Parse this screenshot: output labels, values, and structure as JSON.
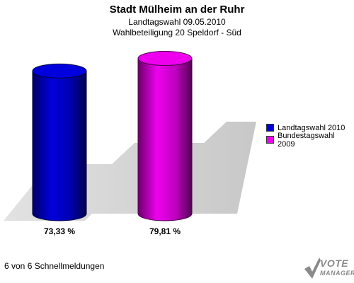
{
  "chart": {
    "title": "Stadt Mülheim an der Ruhr",
    "subtitle1": "Landtagswahl 09.05.2010",
    "subtitle2": "Wahlbeteiligung 20 Speldorf - Süd",
    "footer": "6 von 6 Schnellmeldungen",
    "logo_line1": "VOTE",
    "logo_line2": "MANAGER"
  },
  "legend": {
    "items": [
      {
        "label": "Landtagswahl 2010",
        "color": "#0000dd"
      },
      {
        "label": "Bundestagswahl 2009",
        "color": "#ee00ee"
      }
    ]
  },
  "chart_data": {
    "type": "bar",
    "categories": [
      "Landtagswahl 2010",
      "Bundestagswahl 2009"
    ],
    "values": [
      73.33,
      79.81
    ],
    "labels": [
      "73,33 %",
      "79,81 %"
    ],
    "colors": [
      "#0000dd",
      "#ee00ee"
    ],
    "ylim": [
      0,
      100
    ],
    "grid": false,
    "legend_position": "right"
  }
}
